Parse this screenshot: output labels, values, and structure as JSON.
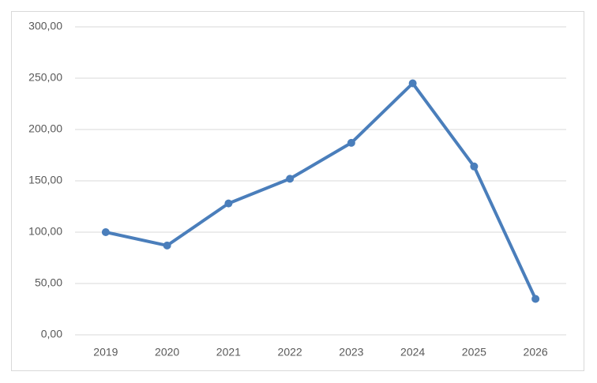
{
  "chart_data": {
    "type": "line",
    "categories": [
      "2019",
      "2020",
      "2021",
      "2022",
      "2023",
      "2024",
      "2025",
      "2026"
    ],
    "values": [
      100,
      87,
      128,
      152,
      187,
      245,
      164,
      35
    ],
    "color": "#4a7ebb",
    "ylim": [
      0,
      300
    ],
    "yticks": [
      {
        "value": 0,
        "label": "0,00"
      },
      {
        "value": 50,
        "label": "50,00"
      },
      {
        "value": 100,
        "label": "100,00"
      },
      {
        "value": 150,
        "label": "150,00"
      },
      {
        "value": 200,
        "label": "200,00"
      },
      {
        "value": 250,
        "label": "250,00"
      },
      {
        "value": 300,
        "label": "300,00"
      }
    ],
    "grid": true
  }
}
